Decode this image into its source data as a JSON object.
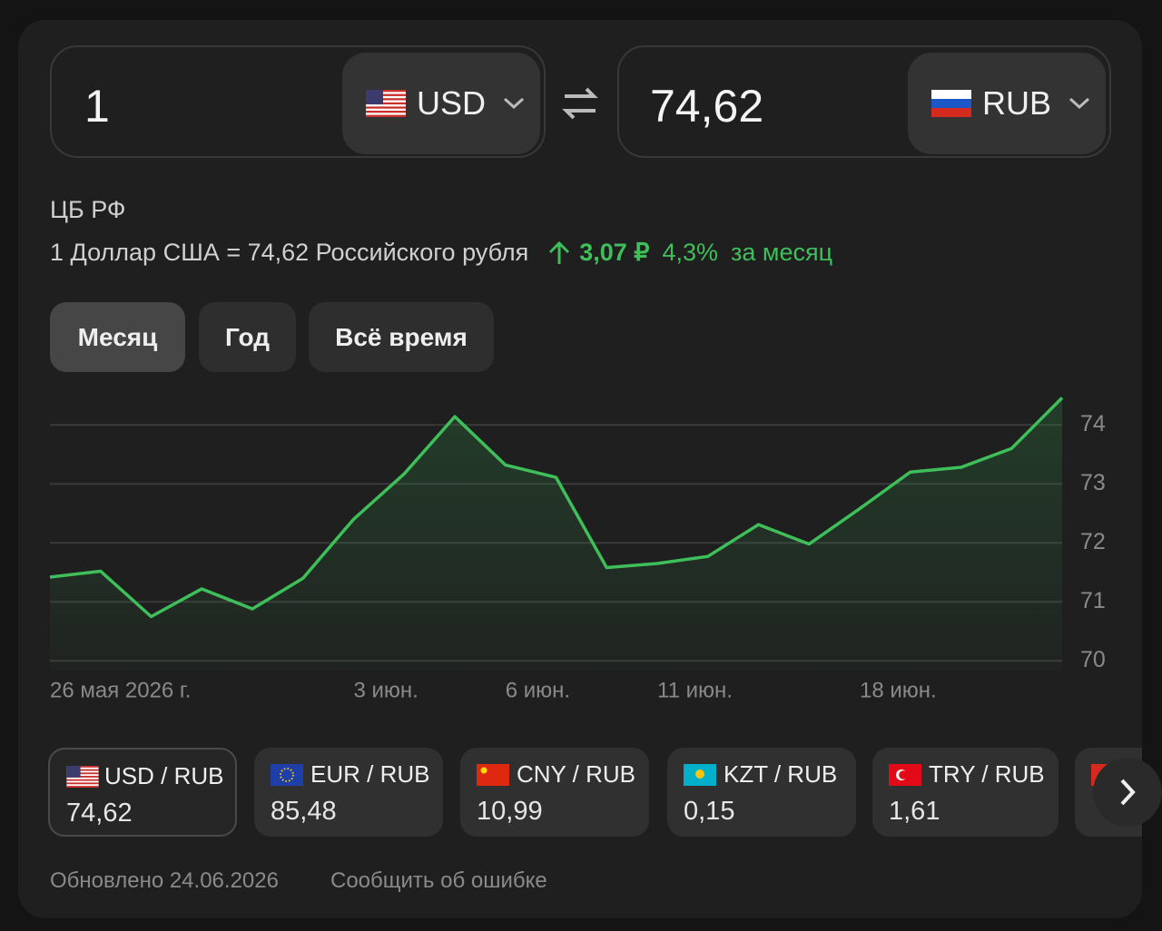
{
  "converter": {
    "from": {
      "amount": "1",
      "currency": "USD"
    },
    "to": {
      "amount": "74,62",
      "currency": "RUB"
    }
  },
  "source": "ЦБ РФ",
  "rate_text": "1 Доллар США = 74,62 Российского рубля",
  "change": {
    "amount": "3,07 ₽",
    "percent": "4,3%",
    "period": "за месяц"
  },
  "tabs": [
    "Месяц",
    "Год",
    "Всё время"
  ],
  "chart_data": {
    "type": "line",
    "categories": [
      "26 мая 2026 г.",
      null,
      null,
      null,
      null,
      null,
      "3 июн.",
      null,
      null,
      "6 июн.",
      null,
      null,
      "11 июн.",
      null,
      null,
      null,
      "18 июн.",
      null,
      null,
      null,
      null
    ],
    "values": [
      71.42,
      71.52,
      70.75,
      71.22,
      70.88,
      71.4,
      72.4,
      73.17,
      74.14,
      73.32,
      73.11,
      71.58,
      71.65,
      71.77,
      72.31,
      71.98,
      72.58,
      73.2,
      73.28,
      73.6,
      74.46
    ],
    "color": "#3fbf5a",
    "ylim": [
      69.85,
      74.6
    ],
    "yticks": [
      70,
      71,
      72,
      73,
      74
    ],
    "grid": true
  },
  "pairs": [
    {
      "label": "USD / RUB",
      "rate": "74,62"
    },
    {
      "label": "EUR / RUB",
      "rate": "85,48"
    },
    {
      "label": "CNY / RUB",
      "rate": "10,99"
    },
    {
      "label": "KZT / RUB",
      "rate": "0,15"
    },
    {
      "label": "TRY / RUB",
      "rate": "1,61"
    }
  ],
  "footer": {
    "updated": "Обновлено 24.06.2026",
    "report": "Сообщить об ошибке"
  }
}
